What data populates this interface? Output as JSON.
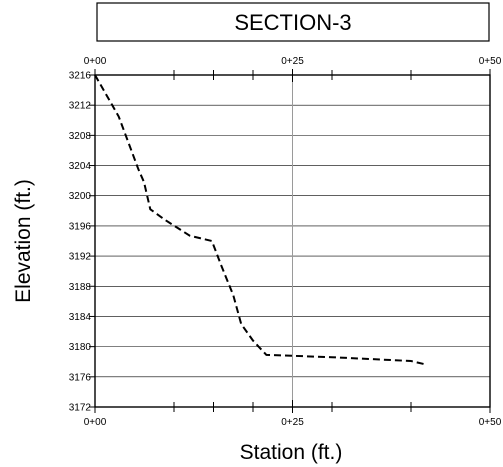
{
  "chart_data": {
    "type": "line",
    "title": "SECTION-3",
    "xlabel": "Station (ft.)",
    "ylabel": "Elevation (ft.)",
    "xlim": [
      0,
      50
    ],
    "ylim": [
      3172,
      3216
    ],
    "x_ticks": [
      {
        "value": 0,
        "label": "0+00"
      },
      {
        "value": 25,
        "label": "0+25"
      },
      {
        "value": 50,
        "label": "0+50"
      }
    ],
    "x_minor_ticks": [
      10,
      15,
      20,
      30,
      40
    ],
    "y_ticks": [
      3172,
      3176,
      3180,
      3184,
      3188,
      3192,
      3196,
      3200,
      3204,
      3208,
      3212,
      3216
    ],
    "grid": "horizontal at every y tick; one vertical gridline at 0+25",
    "series": [
      {
        "style": "dashed",
        "color": "#000000",
        "x": [
          0,
          3,
          5.5,
          6.2,
          7,
          9,
          12,
          14.8,
          16,
          17.5,
          18.5,
          20,
          21.7,
          30,
          40,
          42
        ],
        "y": [
          3216,
          3210.5,
          3203.5,
          3201.8,
          3198.2,
          3196.7,
          3194.7,
          3194,
          3190.7,
          3186.8,
          3183,
          3180.8,
          3178.9,
          3178.6,
          3178.1,
          3177.6
        ]
      }
    ]
  }
}
